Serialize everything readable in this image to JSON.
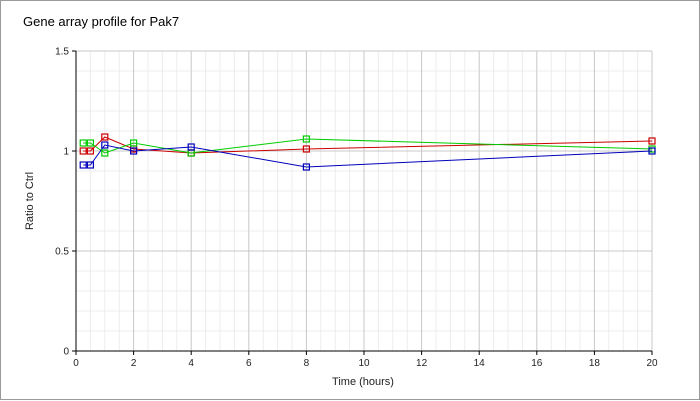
{
  "chart_data": {
    "type": "line",
    "title": "Gene array profile for Pak7",
    "xlabel": "Time (hours)",
    "ylabel": "Ratio to Ctrl",
    "xlim": [
      0,
      20
    ],
    "ylim": [
      0,
      1.5
    ],
    "xticks": [
      0,
      2,
      4,
      6,
      8,
      10,
      12,
      14,
      16,
      18,
      20
    ],
    "yticks": [
      0,
      0.5,
      1,
      1.5
    ],
    "xtick_labels": [
      "0",
      "2",
      "4",
      "6",
      "8",
      "10",
      "12",
      "14",
      "16",
      "18",
      "20"
    ],
    "ytick_labels": [
      "0",
      "0.5",
      "1",
      "1.5"
    ],
    "grid": true,
    "legend": "none",
    "marker": "square-open",
    "series": [
      {
        "color": "#cc0000",
        "x": [
          0.25,
          0.5,
          1,
          2,
          4,
          8,
          20
        ],
        "y": [
          1.0,
          1.0,
          1.07,
          1.01,
          0.99,
          1.01,
          1.05
        ]
      },
      {
        "color": "#00cc00",
        "x": [
          0.25,
          0.5,
          1,
          2,
          4,
          8,
          20
        ],
        "y": [
          1.04,
          1.04,
          0.99,
          1.04,
          0.99,
          1.06,
          1.01
        ]
      },
      {
        "color": "#0000bb",
        "x": [
          0.25,
          0.5,
          1,
          2,
          4,
          8,
          20
        ],
        "y": [
          0.93,
          0.93,
          1.03,
          1.0,
          1.02,
          0.92,
          1.0
        ]
      }
    ]
  },
  "colors": {
    "major_grid": "#c8c8c8",
    "minor_grid": "#ececec",
    "axis": "#000000"
  }
}
